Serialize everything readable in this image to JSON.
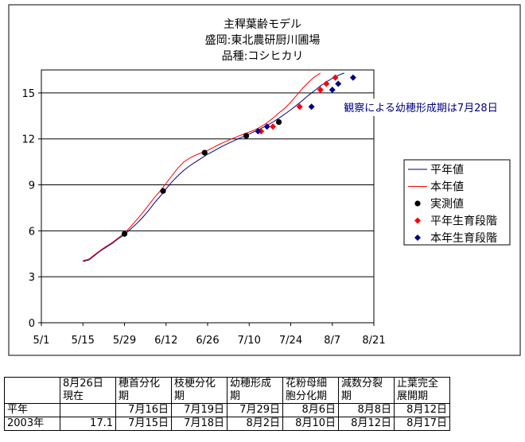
{
  "chart_data": {
    "type": "line",
    "title": [
      "主稈葉齢モデル",
      "盛岡:東北農研厨川圃場",
      "品種:コシヒカリ"
    ],
    "xlabel": "",
    "ylabel": "",
    "x_ticks": [
      "5/1",
      "5/15",
      "5/29",
      "6/12",
      "6/26",
      "7/10",
      "7/24",
      "8/7",
      "8/21"
    ],
    "xlim": [
      0,
      112
    ],
    "y_ticks": [
      "0",
      "3",
      "6",
      "9",
      "12",
      "15"
    ],
    "ylim": [
      0,
      16.5
    ],
    "grid": "horizontal",
    "legend_position": "right",
    "annotation": "観察による幼穂形成期は7月28日",
    "series": [
      {
        "name": "平年値",
        "kind": "line",
        "color": "#000080",
        "points": [
          [
            14,
            4.0
          ],
          [
            16,
            4.1
          ],
          [
            18,
            4.4
          ],
          [
            20,
            4.7
          ],
          [
            22,
            4.95
          ],
          [
            24,
            5.2
          ],
          [
            26,
            5.5
          ],
          [
            28,
            5.75
          ],
          [
            30,
            6.1
          ],
          [
            32,
            6.45
          ],
          [
            34,
            6.85
          ],
          [
            36,
            7.3
          ],
          [
            38,
            7.8
          ],
          [
            40,
            8.25
          ],
          [
            42,
            8.75
          ],
          [
            44,
            9.2
          ],
          [
            46,
            9.6
          ],
          [
            48,
            9.95
          ],
          [
            50,
            10.25
          ],
          [
            52,
            10.5
          ],
          [
            54,
            10.75
          ],
          [
            56,
            11.0
          ],
          [
            58,
            11.2
          ],
          [
            60,
            11.42
          ],
          [
            62,
            11.62
          ],
          [
            64,
            11.8
          ],
          [
            66,
            11.98
          ],
          [
            68,
            12.15
          ],
          [
            70,
            12.32
          ],
          [
            72,
            12.5
          ],
          [
            74,
            12.68
          ],
          [
            76,
            12.88
          ],
          [
            78,
            13.1
          ],
          [
            80,
            13.35
          ],
          [
            82,
            13.62
          ],
          [
            84,
            13.9
          ],
          [
            86,
            14.2
          ],
          [
            88,
            14.52
          ],
          [
            90,
            14.85
          ],
          [
            92,
            15.15
          ],
          [
            94,
            15.45
          ],
          [
            96,
            15.72
          ],
          [
            98,
            15.95
          ],
          [
            100,
            16.15
          ],
          [
            102,
            16.3
          ]
        ]
      },
      {
        "name": "本年値",
        "kind": "line",
        "color": "#ff0000",
        "points": [
          [
            14,
            4.05
          ],
          [
            16,
            4.15
          ],
          [
            18,
            4.45
          ],
          [
            20,
            4.75
          ],
          [
            22,
            5.0
          ],
          [
            24,
            5.25
          ],
          [
            26,
            5.55
          ],
          [
            28,
            5.85
          ],
          [
            30,
            6.25
          ],
          [
            32,
            6.7
          ],
          [
            34,
            7.15
          ],
          [
            36,
            7.65
          ],
          [
            38,
            8.15
          ],
          [
            40,
            8.6
          ],
          [
            42,
            9.1
          ],
          [
            44,
            9.6
          ],
          [
            46,
            10.1
          ],
          [
            48,
            10.5
          ],
          [
            50,
            10.75
          ],
          [
            52,
            10.95
          ],
          [
            54,
            11.1
          ],
          [
            56,
            11.25
          ],
          [
            58,
            11.45
          ],
          [
            60,
            11.65
          ],
          [
            62,
            11.82
          ],
          [
            64,
            12.0
          ],
          [
            66,
            12.15
          ],
          [
            68,
            12.3
          ],
          [
            70,
            12.45
          ],
          [
            72,
            12.6
          ],
          [
            74,
            12.8
          ],
          [
            76,
            13.05
          ],
          [
            78,
            13.35
          ],
          [
            80,
            13.7
          ],
          [
            82,
            14.0
          ],
          [
            84,
            14.4
          ],
          [
            86,
            14.85
          ],
          [
            88,
            15.3
          ],
          [
            90,
            15.7
          ],
          [
            92,
            16.05
          ],
          [
            94,
            16.3
          ]
        ]
      },
      {
        "name": "実測値",
        "kind": "marker",
        "shape": "circle",
        "color": "#000000",
        "points": [
          [
            28,
            5.8
          ],
          [
            41,
            8.6
          ],
          [
            55,
            11.1
          ],
          [
            69,
            12.2
          ],
          [
            80,
            13.1
          ]
        ]
      },
      {
        "name": "平年生育段階",
        "kind": "marker",
        "shape": "diamond",
        "color": "#ff0000",
        "points": [
          [
            74,
            12.5
          ],
          [
            78,
            12.8
          ],
          [
            87,
            14.1
          ],
          [
            94,
            15.2
          ],
          [
            96,
            15.6
          ],
          [
            99,
            16.0
          ]
        ]
      },
      {
        "name": "本年生育段階",
        "kind": "marker",
        "shape": "diamond",
        "color": "#000080",
        "points": [
          [
            73,
            12.5
          ],
          [
            76,
            12.8
          ],
          [
            91,
            14.1
          ],
          [
            98,
            15.2
          ],
          [
            100,
            15.6
          ],
          [
            105,
            16.0
          ]
        ]
      }
    ]
  },
  "table": {
    "header": [
      {
        "lines": [
          "",
          ""
        ]
      },
      {
        "lines": [
          "8月26日",
          "現在"
        ]
      },
      {
        "lines": [
          "穂首分化",
          "期"
        ]
      },
      {
        "lines": [
          "枝梗分化",
          "期"
        ]
      },
      {
        "lines": [
          "幼穂形成",
          "期"
        ]
      },
      {
        "lines": [
          "花粉母細",
          "胞分化期"
        ]
      },
      {
        "lines": [
          "減数分裂",
          "期"
        ]
      },
      {
        "lines": [
          "止葉完全",
          "展開期"
        ]
      }
    ],
    "rows": [
      {
        "cells": [
          "平年",
          "",
          "7月16日",
          "7月19日",
          "7月29日",
          "8月6日",
          "8月8日",
          "8月12日"
        ]
      },
      {
        "cells": [
          "2003年",
          "17.1",
          "7月15日",
          "7月18日",
          "8月2日",
          "8月10日",
          "8月12日",
          "8月17日"
        ]
      }
    ]
  }
}
